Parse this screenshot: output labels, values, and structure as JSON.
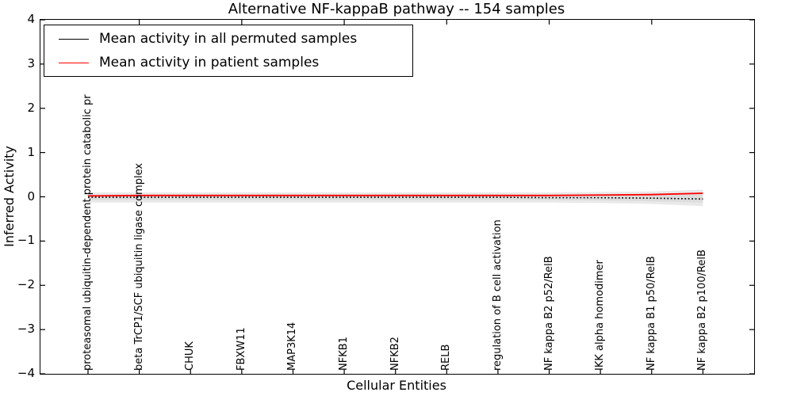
{
  "figure": {
    "title": "Alternative NF-kappaB pathway -- 154 samples",
    "background": "#ffffff",
    "frame_color": "#000000"
  },
  "legend": {
    "position": "upper left",
    "items": [
      {
        "label": "Mean activity in all permuted samples",
        "color": "#000000",
        "line_style": "solid"
      },
      {
        "label": "Mean activity in patient samples",
        "color": "#ff0000",
        "line_style": "solid"
      }
    ]
  },
  "y_axis": {
    "label": "Inferred Activity",
    "tick_values": [
      4,
      3,
      2,
      1,
      0,
      -1,
      -2,
      -3,
      -4
    ],
    "tick_labels": [
      "4",
      "3",
      "2",
      "1",
      "0",
      "−1",
      "−2",
      "−3",
      "−4"
    ]
  },
  "x_axis": {
    "label": "Cellular Entities"
  },
  "chart_data": {
    "type": "line",
    "title": "Alternative NF-kappaB pathway -- 154 samples",
    "xlabel": "Cellular Entities",
    "ylabel": "Inferred Activity",
    "ylim": [
      -4,
      4
    ],
    "yticks": [
      4,
      3,
      2,
      1,
      0,
      -1,
      -2,
      -3,
      -4
    ],
    "grid": false,
    "legend_position": "upper left",
    "categories": [
      "proteasomal ubiquitin-dependent protein catabolic pr",
      "beta TrCP1/SCF ubiquitin ligase complex",
      "CHUK",
      "FBXW11",
      "MAP3K14",
      "NFKB1",
      "NFKB2",
      "RELB",
      "regulation of B cell activation",
      "NF kappa B2 p52/RelB",
      "IKK alpha homodimer",
      "NF kappa B1 p50/RelB",
      "NF kappa B2 p100/RelB"
    ],
    "series": [
      {
        "name": "Mean activity in all permuted samples",
        "color": "#000000",
        "style": "dotted",
        "values": [
          -0.01,
          -0.01,
          -0.01,
          -0.01,
          -0.01,
          -0.01,
          -0.01,
          -0.01,
          -0.01,
          -0.02,
          -0.02,
          -0.03,
          -0.05
        ]
      },
      {
        "name": "Mean activity in patient samples",
        "color": "#ff0000",
        "style": "solid",
        "values": [
          0.02,
          0.03,
          0.03,
          0.03,
          0.03,
          0.03,
          0.03,
          0.03,
          0.03,
          0.03,
          0.04,
          0.05,
          0.08
        ]
      }
    ],
    "bands": [
      {
        "name": "permuted-spread-outer",
        "color": "#e9e9e9",
        "upper": [
          0.1,
          0.1,
          0.1,
          0.1,
          0.1,
          0.1,
          0.1,
          0.1,
          0.1,
          0.1,
          0.11,
          0.12,
          0.16
        ],
        "lower": [
          -0.13,
          -0.13,
          -0.13,
          -0.13,
          -0.13,
          -0.13,
          -0.13,
          -0.13,
          -0.13,
          -0.13,
          -0.14,
          -0.16,
          -0.21
        ]
      },
      {
        "name": "permuted-spread-inner",
        "color": "#dcdcdc",
        "upper": [
          0.05,
          0.05,
          0.05,
          0.05,
          0.05,
          0.05,
          0.05,
          0.05,
          0.05,
          0.05,
          0.06,
          0.07,
          0.09
        ],
        "lower": [
          -0.07,
          -0.07,
          -0.07,
          -0.07,
          -0.07,
          -0.07,
          -0.07,
          -0.07,
          -0.07,
          -0.07,
          -0.08,
          -0.1,
          -0.13
        ]
      }
    ]
  }
}
